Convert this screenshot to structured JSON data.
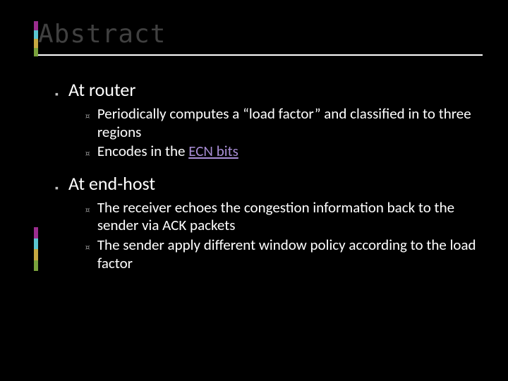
{
  "colors": {
    "background": "#000000",
    "title": "#404040",
    "body_text": "#ffffff",
    "bullet_l1": "#bfbfbf",
    "bullet_l2": "#8f8f8f",
    "link": "#a98ed6",
    "underline": "#ffffff",
    "accent_palette": [
      "#9b2d8e",
      "#5bc6d0",
      "#c7a942",
      "#7aa23c"
    ]
  },
  "typography": {
    "title_font": "Consolas",
    "title_size_pt": 36,
    "body_font": "Calibri",
    "l1_size_pt": 26,
    "l2_size_pt": 21
  },
  "title": "Abstract",
  "bullets": {
    "l1_0": "At router",
    "l1_0_sub_0": "Periodically computes a “load factor” and classified in to three regions",
    "l1_0_sub_1_prefix": "Encodes in the ",
    "l1_0_sub_1_link": "ECN bits",
    "l1_1": "At end-host",
    "l1_1_sub_0": "The receiver echoes the congestion information back to the sender via ACK packets",
    "l1_1_sub_1": "The sender apply different window policy according to the load factor"
  },
  "bullet_glyphs": {
    "level1": "▪",
    "level2": "¤"
  }
}
